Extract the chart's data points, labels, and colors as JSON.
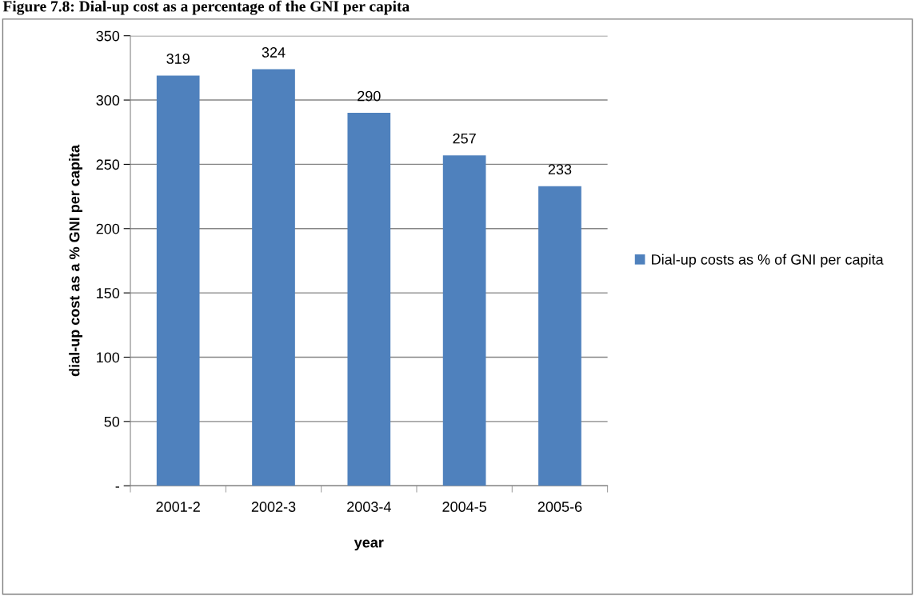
{
  "chart_data": {
    "type": "bar",
    "title": "Figure 7.8: Dial-up cost as a percentage of the GNI per capita",
    "xlabel": "year",
    "ylabel": "dial-up cost as a % GNI per capita",
    "categories": [
      "2001-2",
      "2002-3",
      "2003-4",
      "2004-5",
      "2005-6"
    ],
    "series": [
      {
        "name": "Dial-up costs as % of GNI per capita",
        "color": "#4f81bd",
        "values": [
          319,
          324,
          290,
          257,
          233
        ]
      }
    ],
    "ylim": [
      0,
      350
    ],
    "yticks": [
      {
        "value": 0,
        "label": "-"
      },
      50,
      100,
      150,
      200,
      250,
      300,
      350
    ],
    "grid": "y",
    "legend": "right",
    "data_labels": true
  }
}
